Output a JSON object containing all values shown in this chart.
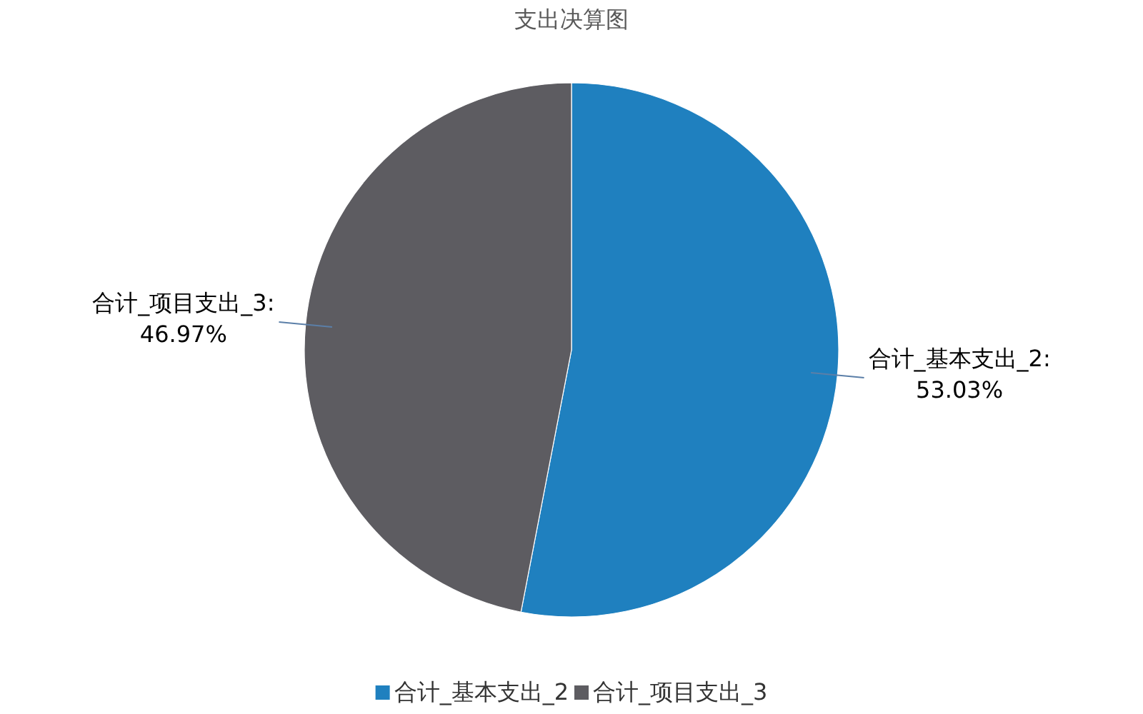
{
  "chart_data": {
    "type": "pie",
    "title": "支出决算图",
    "categories": [
      "合计_基本支出_2",
      "合计_项目支出_3"
    ],
    "values": [
      53.03,
      46.97
    ],
    "value_labels": [
      "合计_基本支出_2:\n53.03%",
      "合计_项目支出_3:\n46.97%"
    ],
    "colors": [
      "#1f80bf",
      "#5d5c61"
    ],
    "legend": "bottom"
  }
}
